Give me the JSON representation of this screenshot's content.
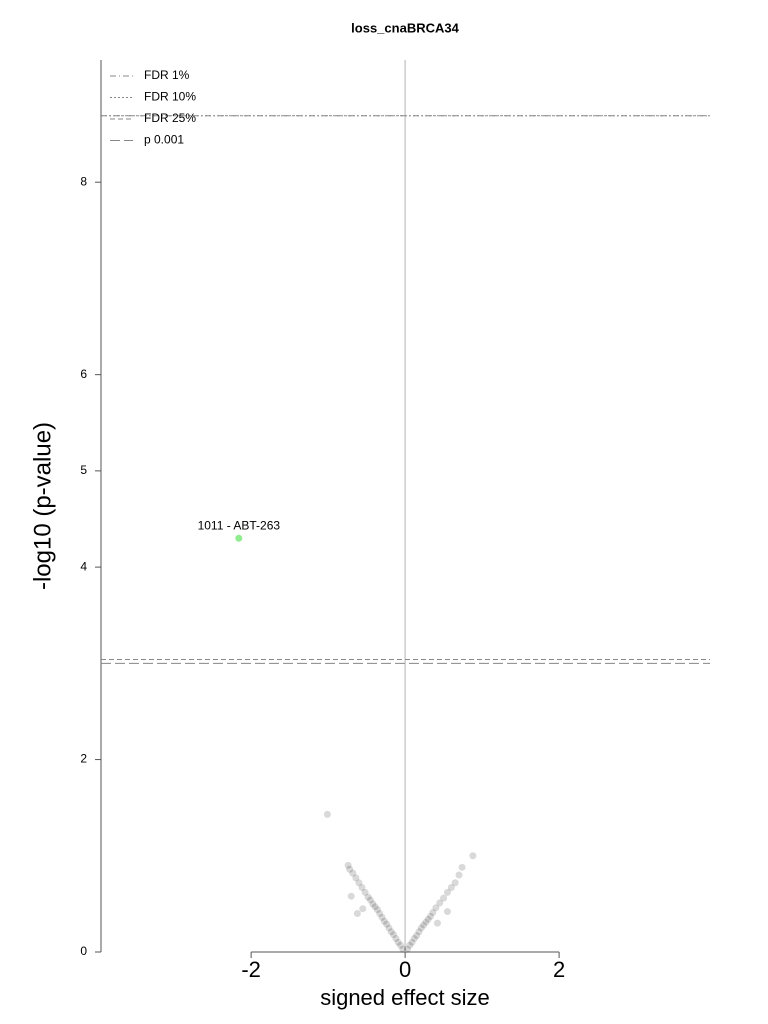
{
  "chart_data": {
    "type": "scatter",
    "title": "loss_cnaBRCA34",
    "xlabel": "signed effect size",
    "ylabel": "-log10 (p-value)",
    "xlim": [
      -3.95,
      3.96
    ],
    "ylim": [
      0,
      9.27
    ],
    "xticks": [
      -2,
      0,
      2
    ],
    "yticks": [
      0,
      2,
      4,
      5,
      6,
      8
    ],
    "points": {
      "color": "#000000",
      "opacity": 0.15,
      "x": [
        -0.03,
        -0.06,
        -0.09,
        -0.12,
        -0.15,
        -0.18,
        -0.21,
        -0.24,
        -0.27,
        -0.3,
        -0.33,
        -0.36,
        -0.39,
        -0.42,
        -0.45,
        -0.48,
        -0.52,
        -0.56,
        -0.6,
        -0.64,
        -0.68,
        -0.72,
        -0.74,
        -0.7,
        -0.55,
        -0.62,
        -1.01,
        0.03,
        0.06,
        0.09,
        0.12,
        0.15,
        0.18,
        0.21,
        0.24,
        0.27,
        0.3,
        0.33,
        0.36,
        0.4,
        0.45,
        0.5,
        0.55,
        0.6,
        0.65,
        0.7,
        0.74,
        0.55,
        0.42,
        0.88
      ],
      "y": [
        0.03,
        0.07,
        0.1,
        0.14,
        0.18,
        0.21,
        0.25,
        0.29,
        0.32,
        0.36,
        0.4,
        0.44,
        0.47,
        0.5,
        0.54,
        0.57,
        0.62,
        0.67,
        0.72,
        0.77,
        0.82,
        0.86,
        0.9,
        0.58,
        0.45,
        0.4,
        1.43,
        0.03,
        0.07,
        0.1,
        0.14,
        0.17,
        0.21,
        0.25,
        0.28,
        0.31,
        0.34,
        0.37,
        0.41,
        0.46,
        0.51,
        0.56,
        0.62,
        0.67,
        0.72,
        0.8,
        0.88,
        0.42,
        0.3,
        1.0
      ]
    },
    "annotations": [
      {
        "text": "1011 - ABT-263",
        "x": -2.16,
        "y": 4.3,
        "color": "#90ee90"
      }
    ],
    "zero_line": true,
    "thresholds": [
      {
        "name": "FDR 1%",
        "value": 8.69,
        "style": "dashdot"
      },
      {
        "name": "FDR 10%",
        "value": 8.69,
        "style": "dotted"
      },
      {
        "name": "FDR 25%",
        "value": 3.04,
        "style": "dashed"
      },
      {
        "name": "p 0.001",
        "value": 3.0,
        "style": "longdash"
      }
    ]
  }
}
